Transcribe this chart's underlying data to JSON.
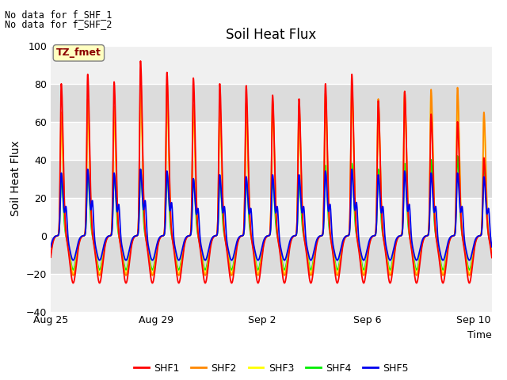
{
  "title": "Soil Heat Flux",
  "ylabel": "Soil Heat Flux",
  "xlabel": "Time",
  "top_annotation_line1": "No data for f_SHF_1",
  "top_annotation_line2": "No data for f_SHF_2",
  "tz_label": "TZ_fmet",
  "ylim": [
    -40,
    100
  ],
  "yticks": [
    -40,
    -20,
    0,
    20,
    40,
    60,
    80,
    100
  ],
  "series_colors": {
    "SHF1": "#FF0000",
    "SHF2": "#FF8800",
    "SHF3": "#FFFF00",
    "SHF4": "#00EE00",
    "SHF5": "#0000EE"
  },
  "legend_labels": [
    "SHF1",
    "SHF2",
    "SHF3",
    "SHF4",
    "SHF5"
  ],
  "background_color": "#FFFFFF",
  "plot_bg_light": "#F0F0F0",
  "plot_bg_dark": "#DCDCDC",
  "grid_color": "#FFFFFF",
  "xtick_labels": [
    "Aug 25",
    "Aug 29",
    "Sep 2",
    "Sep 6",
    "Sep 10"
  ],
  "xtick_positions_days": [
    0,
    4,
    8,
    12,
    16
  ],
  "num_days": 17,
  "points_per_day": 144,
  "shf1_amplitudes": [
    80,
    85,
    81,
    92,
    86,
    83,
    80,
    79,
    74,
    72,
    80,
    85,
    71,
    76,
    64,
    60,
    41
  ],
  "shf2_amplitudes": [
    65,
    72,
    68,
    83,
    80,
    69,
    70,
    70,
    71,
    68,
    75,
    80,
    72,
    76,
    77,
    78,
    65
  ],
  "shf3_amplitudes": [
    58,
    66,
    62,
    76,
    73,
    65,
    65,
    63,
    67,
    64,
    70,
    75,
    68,
    72,
    74,
    74,
    62
  ],
  "shf4_amplitudes": [
    30,
    33,
    32,
    35,
    33,
    30,
    30,
    30,
    30,
    29,
    37,
    38,
    35,
    38,
    40,
    42,
    38
  ],
  "shf5_amplitudes": [
    33,
    35,
    33,
    35,
    34,
    30,
    32,
    31,
    32,
    32,
    34,
    35,
    32,
    34,
    33,
    33,
    31
  ],
  "shf5_secondary": [
    15,
    18,
    16,
    18,
    17,
    14,
    15,
    14,
    15,
    15,
    16,
    17,
    15,
    16,
    15,
    15,
    14
  ],
  "shf1_min": -25,
  "shf2_min": -21,
  "shf3_min": -20,
  "shf4_min": -18,
  "shf5_min": -13,
  "linewidth": 1.3
}
